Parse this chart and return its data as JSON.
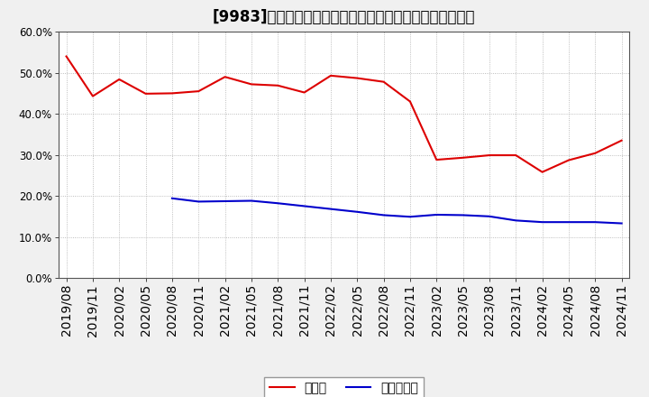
{
  "title": "[9983]　現預金、有利子負債の総資産に対する比率の推移",
  "x_labels": [
    "2019/08",
    "2019/11",
    "2020/02",
    "2020/05",
    "2020/08",
    "2020/11",
    "2021/02",
    "2021/05",
    "2021/08",
    "2021/11",
    "2022/02",
    "2022/05",
    "2022/08",
    "2022/11",
    "2023/02",
    "2023/05",
    "2023/08",
    "2023/11",
    "2024/02",
    "2024/05",
    "2024/08",
    "2024/11"
  ],
  "cash_values": [
    0.54,
    0.443,
    0.484,
    0.449,
    0.45,
    0.455,
    0.49,
    0.472,
    0.469,
    0.452,
    0.493,
    0.487,
    0.478,
    0.43,
    0.288,
    0.293,
    0.299,
    0.299,
    0.258,
    0.287,
    0.304,
    0.335
  ],
  "debt_values": [
    null,
    null,
    null,
    null,
    0.194,
    0.186,
    0.187,
    0.188,
    0.182,
    0.175,
    0.168,
    0.161,
    0.153,
    0.149,
    0.154,
    0.153,
    0.15,
    0.14,
    0.136,
    0.136,
    0.136,
    0.133
  ],
  "cash_color": "#dd0000",
  "debt_color": "#0000cc",
  "ylim": [
    0.0,
    0.6
  ],
  "yticks": [
    0.0,
    0.1,
    0.2,
    0.3,
    0.4,
    0.5,
    0.6
  ],
  "legend_cash": "現預金",
  "legend_debt": "有利子負債",
  "bg_color": "#f0f0f0",
  "plot_bg_color": "#ffffff",
  "grid_color": "#aaaaaa",
  "title_fontsize": 12,
  "legend_fontsize": 10,
  "tick_fontsize": 7.5,
  "ytick_fontsize": 8.5
}
